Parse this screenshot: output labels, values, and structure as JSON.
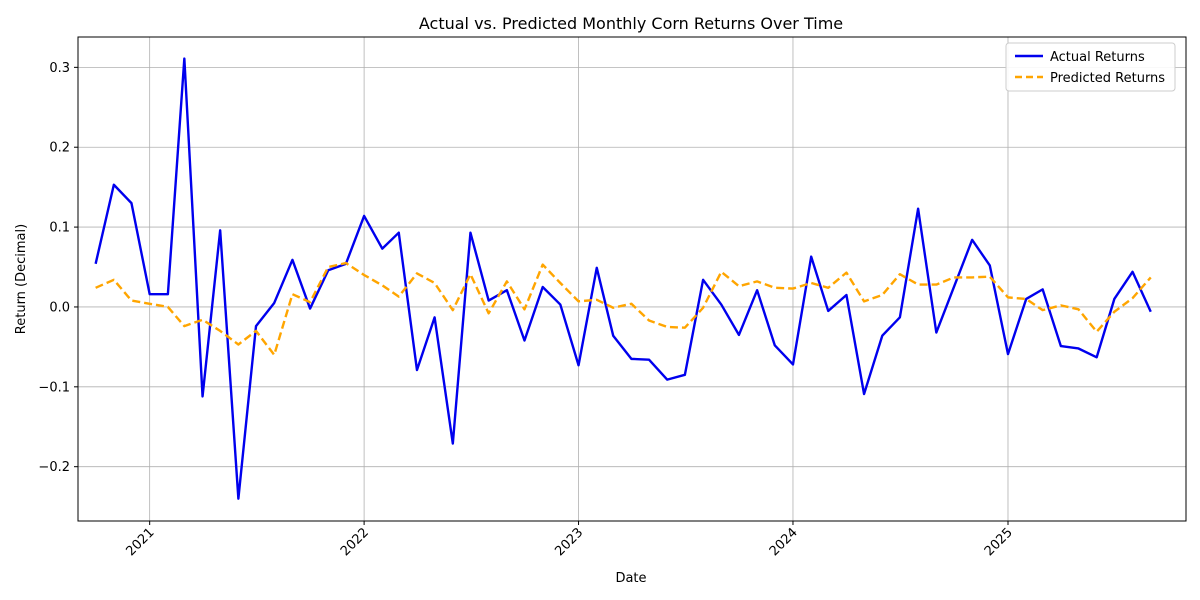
{
  "chart_data": {
    "type": "line",
    "title": "Actual vs. Predicted Monthly Corn Returns Over Time",
    "xlabel": "Date",
    "ylabel": "Return (Decimal)",
    "x_ticks": [
      "2021",
      "2022",
      "2023",
      "2024",
      "2025"
    ],
    "y_ticks": [
      -0.2,
      -0.1,
      0.0,
      0.1,
      0.2,
      0.3
    ],
    "y_tick_labels": [
      "−0.2",
      "−0.1",
      "0.0",
      "0.1",
      "0.2",
      "0.3"
    ],
    "xlim": [
      "2020-09",
      "2025-10-31"
    ],
    "ylim": [
      -0.268,
      0.338
    ],
    "grid": true,
    "legend_position": "top-right",
    "x": [
      "2020-10",
      "2020-11",
      "2020-12",
      "2021-01",
      "2021-02",
      "2021-03",
      "2021-04",
      "2021-05",
      "2021-06",
      "2021-07",
      "2021-08",
      "2021-09",
      "2021-10",
      "2021-11",
      "2021-12",
      "2022-01",
      "2022-02",
      "2022-03",
      "2022-04",
      "2022-05",
      "2022-06",
      "2022-07",
      "2022-08",
      "2022-09",
      "2022-10",
      "2022-11",
      "2022-12",
      "2023-01",
      "2023-02",
      "2023-03",
      "2023-04",
      "2023-05",
      "2023-06",
      "2023-07",
      "2023-08",
      "2023-09",
      "2023-10",
      "2023-11",
      "2023-12",
      "2024-01",
      "2024-02",
      "2024-03",
      "2024-04",
      "2024-05",
      "2024-06",
      "2024-07",
      "2024-08",
      "2024-09",
      "2024-10",
      "2024-11",
      "2024-12",
      "2025-01",
      "2025-02",
      "2025-03",
      "2025-04",
      "2025-05",
      "2025-06",
      "2025-07",
      "2025-08",
      "2025-09"
    ],
    "series": [
      {
        "name": "Actual Returns",
        "color": "#0000ee",
        "style": "solid",
        "values": [
          0.054,
          0.153,
          0.13,
          0.016,
          0.016,
          0.311,
          -0.112,
          0.096,
          -0.24,
          -0.024,
          0.005,
          0.059,
          -0.002,
          0.046,
          0.054,
          0.114,
          0.073,
          0.093,
          -0.079,
          -0.013,
          -0.171,
          0.093,
          0.008,
          0.021,
          -0.042,
          0.025,
          0.003,
          -0.073,
          0.049,
          -0.036,
          -0.065,
          -0.066,
          -0.091,
          -0.085,
          0.034,
          0.003,
          -0.035,
          0.021,
          -0.048,
          -0.072,
          0.063,
          -0.005,
          0.015,
          -0.109,
          -0.036,
          -0.013,
          0.123,
          -0.032,
          0.025,
          0.084,
          0.052,
          -0.059,
          0.01,
          0.022,
          -0.049,
          -0.052,
          -0.063,
          0.01,
          0.044,
          -0.006
        ]
      },
      {
        "name": "Predicted Returns",
        "color": "#ffa500",
        "style": "dashed",
        "values": [
          0.024,
          0.034,
          0.008,
          0.004,
          0.0,
          -0.024,
          -0.016,
          -0.03,
          -0.047,
          -0.03,
          -0.06,
          0.016,
          0.006,
          0.05,
          0.055,
          0.04,
          0.027,
          0.013,
          0.042,
          0.03,
          -0.004,
          0.041,
          -0.008,
          0.032,
          -0.003,
          0.053,
          0.03,
          0.007,
          0.009,
          -0.001,
          0.004,
          -0.017,
          -0.025,
          -0.026,
          -0.001,
          0.044,
          0.026,
          0.032,
          0.024,
          0.023,
          0.03,
          0.024,
          0.043,
          0.007,
          0.015,
          0.041,
          0.028,
          0.028,
          0.037,
          0.037,
          0.038,
          0.012,
          0.01,
          -0.004,
          0.002,
          -0.003,
          -0.031,
          -0.006,
          0.011,
          0.037
        ]
      }
    ]
  }
}
